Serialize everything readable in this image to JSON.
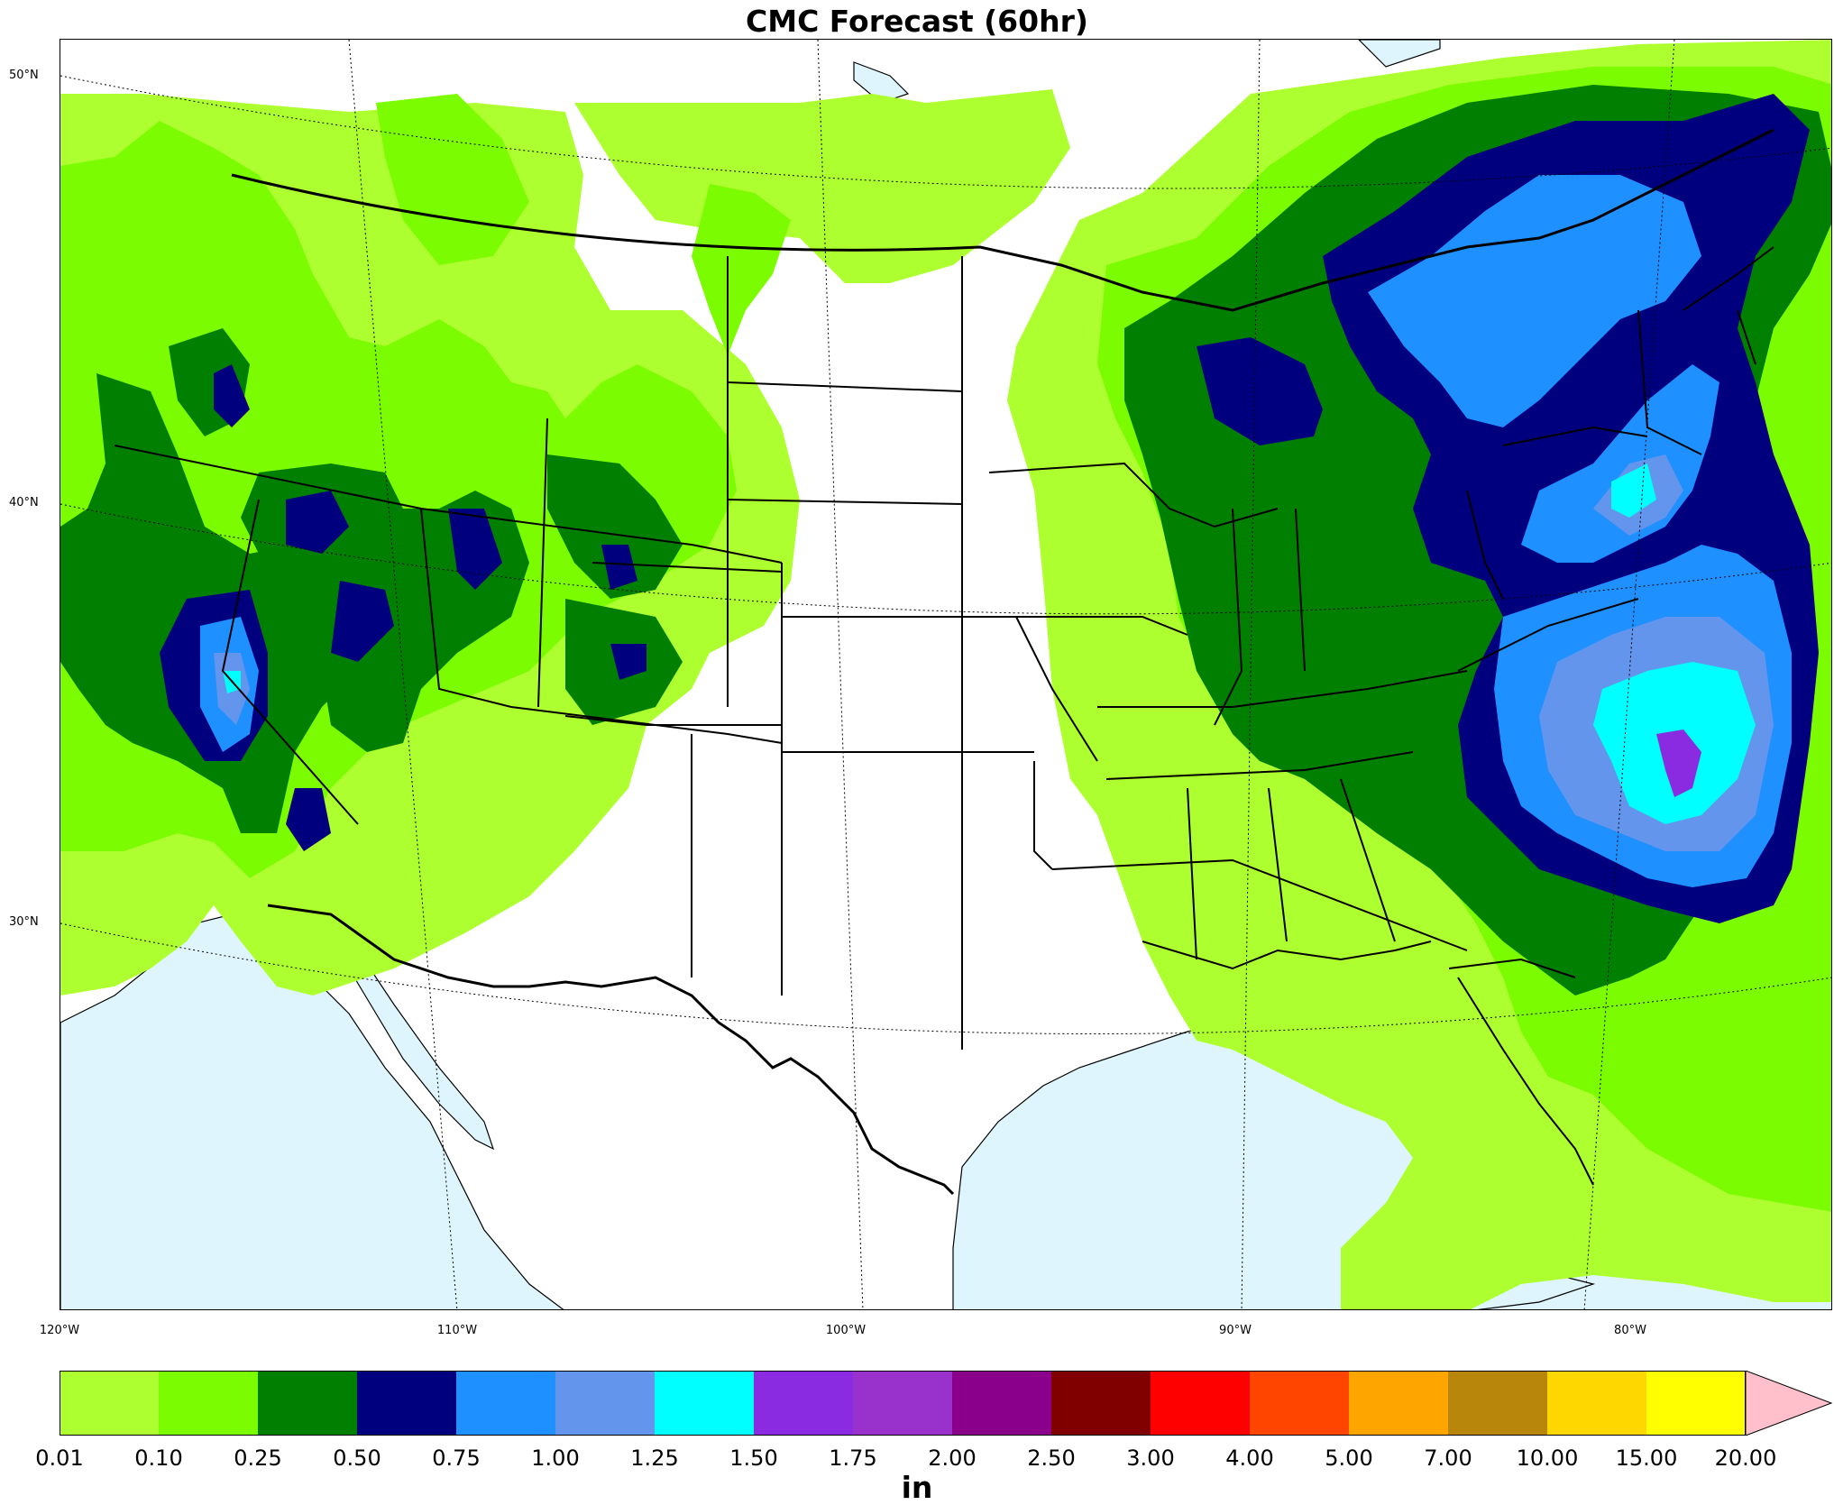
{
  "title": "CMC Forecast (60hr)",
  "latitude_labels": [
    "50°N",
    "40°N",
    "30°N"
  ],
  "longitude_labels": [
    "120°W",
    "110°W",
    "100°W",
    "90°W",
    "80°W"
  ],
  "colorbar": {
    "unit": "in",
    "levels": [
      "0.01",
      "0.10",
      "0.25",
      "0.50",
      "0.75",
      "1.00",
      "1.25",
      "1.50",
      "1.75",
      "2.00",
      "2.50",
      "3.00",
      "4.00",
      "5.00",
      "7.00",
      "10.00",
      "15.00",
      "20.00"
    ],
    "colors": [
      "#adff2f",
      "#7cfc00",
      "#007f00",
      "#00007f",
      "#1e90ff",
      "#6495ed",
      "#00ffff",
      "#8a2be2",
      "#9932cc",
      "#8b008b",
      "#800000",
      "#ff0000",
      "#ff4500",
      "#ffa500",
      "#b8860b",
      "#ffd700",
      "#ffff00"
    ],
    "extend_color": "#ffc0cb"
  },
  "colors": {
    "water": "#def5fd",
    "land": "#ffffff",
    "borders": "#000000"
  }
}
